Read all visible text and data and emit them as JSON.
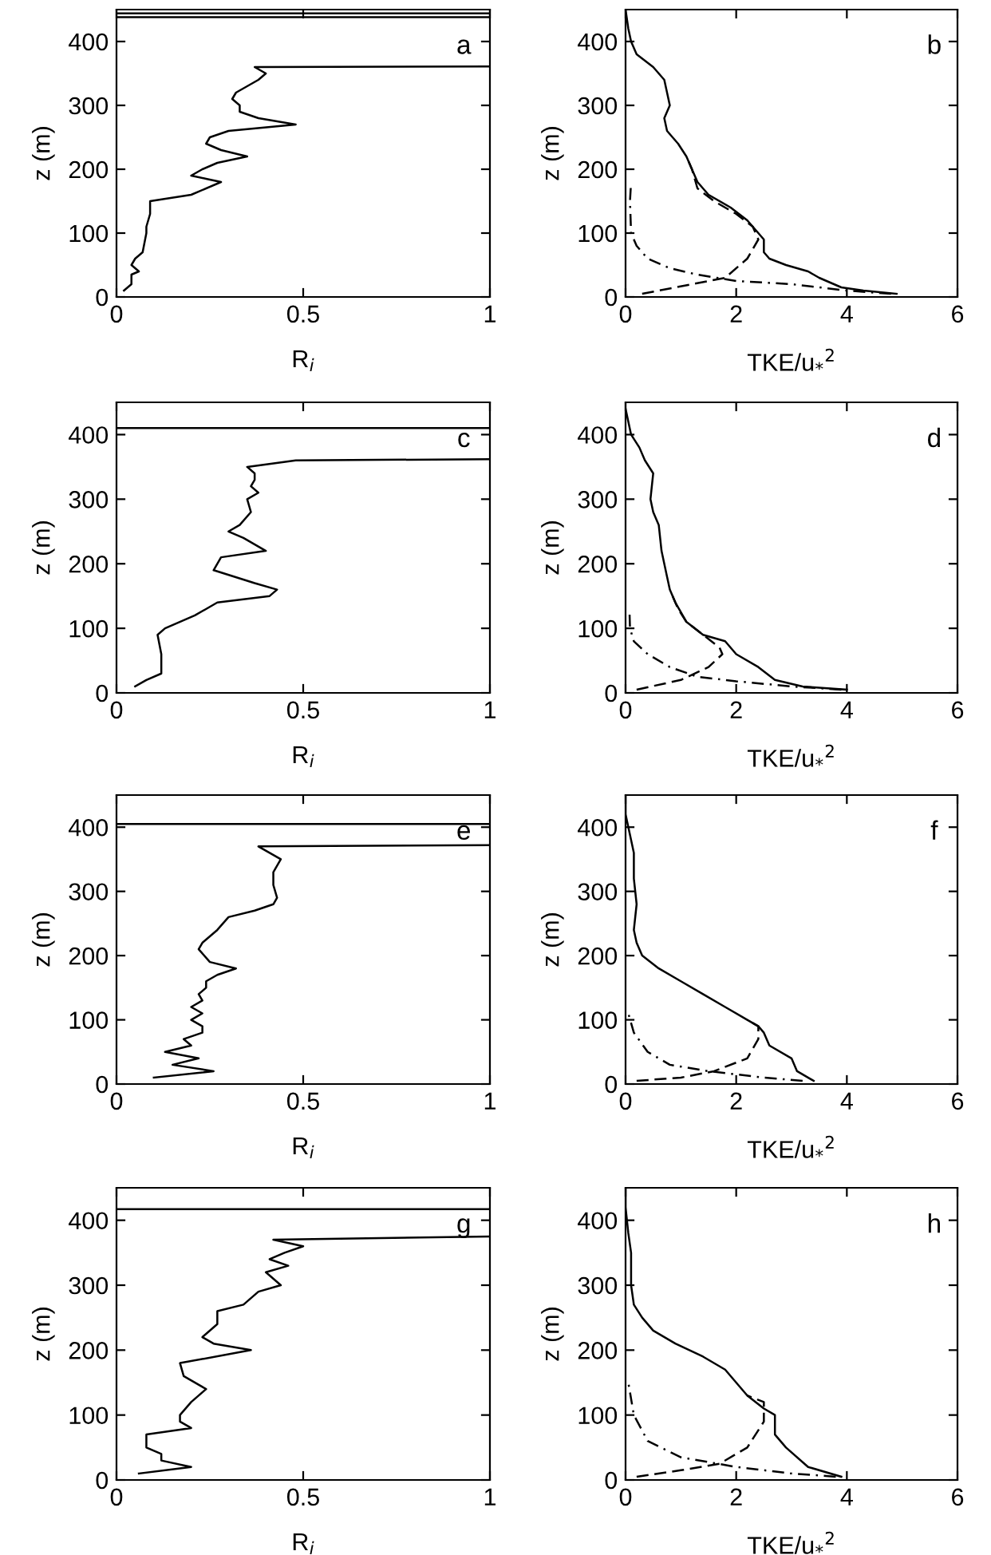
{
  "chart_data": [
    {
      "type": "line",
      "xlabel": "R$_{i}$",
      "ylabel": "z (m)",
      "annotations": [
        "a"
      ],
      "xlim": [
        0,
        1
      ],
      "xticks": [
        0,
        0.5,
        1
      ],
      "ylim": [
        0,
        450
      ],
      "yticks": [
        0,
        100,
        200,
        300,
        400
      ],
      "grid": false,
      "legend": false,
      "ref_lines": [
        {
          "axis": "y",
          "value": 438,
          "color": "#000000"
        },
        {
          "axis": "y",
          "value": 444,
          "color": "#000000"
        }
      ],
      "series": [
        {
          "color": "#000000",
          "line_style": "solid",
          "x": [
            0.02,
            0.04,
            0.04,
            0.06,
            0.04,
            0.05,
            0.07,
            0.08,
            0.08,
            0.09,
            0.09,
            0.2,
            0.28,
            0.24,
            0.2,
            0.23,
            0.27,
            0.35,
            0.28,
            0.24,
            0.25,
            0.3,
            0.48,
            0.38,
            0.33,
            0.33,
            0.31,
            0.32,
            0.35,
            0.38,
            0.4,
            0.37,
            1
          ],
          "values": [
            10,
            20,
            35,
            40,
            50,
            60,
            70,
            100,
            110,
            130,
            150,
            160,
            180,
            185,
            190,
            200,
            210,
            220,
            230,
            240,
            250,
            260,
            270,
            280,
            290,
            300,
            310,
            320,
            330,
            340,
            350,
            360,
            361
          ]
        }
      ]
    },
    {
      "type": "line",
      "xlabel": "TKE/u$_{*}$$^{2}$",
      "ylabel": "z (m)",
      "annotations": [
        "b"
      ],
      "xlim": [
        0,
        6
      ],
      "xticks": [
        0,
        2,
        4,
        6
      ],
      "ylim": [
        0,
        450
      ],
      "yticks": [
        0,
        100,
        200,
        300,
        400
      ],
      "grid": false,
      "legend": false,
      "series": [
        {
          "color": "#000000",
          "line_style": "solid",
          "x": [
            4.9,
            4.3,
            3.9,
            3.5,
            3.3,
            2.9,
            2.6,
            2.5,
            2.5,
            2.4,
            2.2,
            1.9,
            1.5,
            1.3,
            1.2,
            1.1,
            0.95,
            0.75,
            0.7,
            0.8,
            0.75,
            0.7,
            0.5,
            0.2,
            0.1,
            0.05,
            0
          ],
          "values": [
            5,
            10,
            15,
            30,
            40,
            50,
            60,
            70,
            90,
            100,
            120,
            140,
            160,
            180,
            200,
            220,
            240,
            260,
            280,
            300,
            320,
            340,
            360,
            380,
            400,
            420,
            450
          ]
        },
        {
          "color": "#000000",
          "line_style": "dashed",
          "x": [
            0.3,
            1.2,
            1.8,
            2.2,
            2.4,
            2.3,
            2.0,
            1.6,
            1.3,
            1.2,
            1.1
          ],
          "values": [
            5,
            20,
            30,
            60,
            90,
            110,
            130,
            150,
            170,
            200,
            220
          ]
        },
        {
          "color": "#000000",
          "line_style": "dashdot",
          "x": [
            4.8,
            4,
            3,
            2,
            1.3,
            0.8,
            0.4,
            0.2,
            0.1,
            0.08,
            0.1
          ],
          "values": [
            5,
            10,
            20,
            25,
            35,
            45,
            60,
            80,
            100,
            150,
            180
          ]
        }
      ]
    },
    {
      "type": "line",
      "xlabel": "R$_{i}$",
      "ylabel": "z (m)",
      "annotations": [
        "c"
      ],
      "xlim": [
        0,
        1
      ],
      "xticks": [
        0,
        0.5,
        1
      ],
      "ylim": [
        0,
        450
      ],
      "yticks": [
        0,
        100,
        200,
        300,
        400
      ],
      "grid": false,
      "legend": false,
      "ref_lines": [
        {
          "axis": "y",
          "value": 410,
          "color": "#000000"
        }
      ],
      "series": [
        {
          "color": "#000000",
          "line_style": "solid",
          "x": [
            0.05,
            0.08,
            0.12,
            0.12,
            0.11,
            0.13,
            0.21,
            0.27,
            0.41,
            0.43,
            0.37,
            0.26,
            0.28,
            0.4,
            0.34,
            0.3,
            0.33,
            0.36,
            0.35,
            0.38,
            0.36,
            0.37,
            0.37,
            0.35,
            0.48,
            1
          ],
          "values": [
            10,
            20,
            30,
            60,
            90,
            100,
            120,
            140,
            150,
            160,
            170,
            190,
            210,
            220,
            240,
            250,
            260,
            280,
            300,
            310,
            320,
            330,
            340,
            350,
            360,
            362
          ]
        }
      ]
    },
    {
      "type": "line",
      "xlabel": "TKE/u$_{*}$$^{2}$",
      "ylabel": "z (m)",
      "annotations": [
        "d"
      ],
      "xlim": [
        0,
        6
      ],
      "xticks": [
        0,
        2,
        4,
        6
      ],
      "ylim": [
        0,
        450
      ],
      "yticks": [
        0,
        100,
        200,
        300,
        400
      ],
      "grid": false,
      "legend": false,
      "series": [
        {
          "color": "#000000",
          "line_style": "solid",
          "x": [
            4,
            3.2,
            2.7,
            2.4,
            2,
            1.8,
            1.4,
            1.1,
            0.9,
            0.8,
            0.75,
            0.65,
            0.6,
            0.5,
            0.45,
            0.5,
            0.35,
            0.25,
            0.1,
            0
          ],
          "values": [
            5,
            10,
            20,
            40,
            60,
            80,
            90,
            110,
            140,
            160,
            180,
            220,
            260,
            280,
            300,
            340,
            360,
            380,
            400,
            440
          ]
        },
        {
          "color": "#000000",
          "line_style": "dashed",
          "x": [
            0.2,
            1,
            1.5,
            1.75,
            1.7,
            1.4,
            1.1,
            0.95,
            0.85
          ],
          "values": [
            5,
            20,
            40,
            60,
            70,
            90,
            110,
            130,
            150
          ]
        },
        {
          "color": "#000000",
          "line_style": "dashdot",
          "x": [
            3.9,
            3,
            2,
            1.3,
            0.8,
            0.4,
            0.15,
            0.08,
            0.07
          ],
          "values": [
            5,
            10,
            18,
            25,
            40,
            60,
            80,
            100,
            130
          ]
        }
      ]
    },
    {
      "type": "line",
      "xlabel": "R$_{i}$",
      "ylabel": "z (m)",
      "annotations": [
        "e"
      ],
      "xlim": [
        0,
        1
      ],
      "xticks": [
        0,
        0.5,
        1
      ],
      "ylim": [
        0,
        450
      ],
      "yticks": [
        0,
        100,
        200,
        300,
        400
      ],
      "grid": false,
      "legend": false,
      "ref_lines": [
        {
          "axis": "y",
          "value": 405,
          "color": "#000000"
        }
      ],
      "series": [
        {
          "color": "#000000",
          "line_style": "solid",
          "x": [
            0.1,
            0.26,
            0.15,
            0.22,
            0.13,
            0.2,
            0.18,
            0.23,
            0.23,
            0.2,
            0.23,
            0.2,
            0.23,
            0.22,
            0.24,
            0.24,
            0.27,
            0.32,
            0.25,
            0.22,
            0.23,
            0.27,
            0.3,
            0.37,
            0.42,
            0.43,
            0.42,
            0.42,
            0.44,
            0.38,
            1
          ],
          "values": [
            10,
            20,
            30,
            40,
            50,
            60,
            70,
            80,
            90,
            100,
            110,
            120,
            130,
            140,
            150,
            160,
            170,
            180,
            190,
            210,
            220,
            240,
            260,
            270,
            280,
            290,
            310,
            330,
            350,
            370,
            372
          ]
        }
      ]
    },
    {
      "type": "line",
      "xlabel": "TKE/u$_{*}$$^{2}$",
      "ylabel": "z (m)",
      "annotations": [
        "f"
      ],
      "xlim": [
        0,
        6
      ],
      "xticks": [
        0,
        2,
        4,
        6
      ],
      "ylim": [
        0,
        450
      ],
      "yticks": [
        0,
        100,
        200,
        300,
        400
      ],
      "grid": false,
      "legend": false,
      "series": [
        {
          "color": "#000000",
          "line_style": "solid",
          "x": [
            3.4,
            3.1,
            3.0,
            2.6,
            2.5,
            2.4,
            2.2,
            1.8,
            1.4,
            1.0,
            0.6,
            0.3,
            0.2,
            0.15,
            0.2,
            0.15,
            0.15,
            0.1,
            0,
            0
          ],
          "values": [
            5,
            20,
            40,
            60,
            80,
            90,
            100,
            120,
            140,
            160,
            180,
            200,
            220,
            240,
            280,
            320,
            360,
            380,
            420,
            450
          ]
        },
        {
          "color": "#000000",
          "line_style": "dashed",
          "x": [
            0.2,
            1.0,
            1.6,
            2.2,
            2.4,
            2.4,
            2.2
          ],
          "values": [
            5,
            10,
            20,
            40,
            70,
            90,
            100
          ]
        },
        {
          "color": "#000000",
          "line_style": "dashdot",
          "x": [
            3.2,
            2.5,
            1.5,
            0.8,
            0.4,
            0.15,
            0.05
          ],
          "values": [
            5,
            10,
            20,
            30,
            50,
            80,
            110
          ]
        }
      ]
    },
    {
      "type": "line",
      "xlabel": "R$_{i}$",
      "ylabel": "z (m)",
      "annotations": [
        "g"
      ],
      "xlim": [
        0,
        1
      ],
      "xticks": [
        0,
        0.5,
        1
      ],
      "ylim": [
        0,
        450
      ],
      "yticks": [
        0,
        100,
        200,
        300,
        400
      ],
      "grid": false,
      "legend": false,
      "ref_lines": [
        {
          "axis": "y",
          "value": 417,
          "color": "#000000"
        }
      ],
      "series": [
        {
          "color": "#000000",
          "line_style": "solid",
          "x": [
            0.06,
            0.2,
            0.12,
            0.12,
            0.08,
            0.08,
            0.2,
            0.17,
            0.17,
            0.2,
            0.24,
            0.18,
            0.17,
            0.36,
            0.26,
            0.23,
            0.27,
            0.27,
            0.34,
            0.38,
            0.44,
            0.4,
            0.46,
            0.41,
            0.45,
            0.5,
            0.42,
            1
          ],
          "values": [
            10,
            20,
            30,
            40,
            50,
            70,
            80,
            90,
            100,
            120,
            140,
            160,
            180,
            200,
            210,
            220,
            240,
            260,
            270,
            290,
            300,
            320,
            330,
            340,
            350,
            360,
            370,
            375
          ]
        }
      ]
    },
    {
      "type": "line",
      "xlabel": "TKE/u$_{*}$$^{2}$",
      "ylabel": "z (m)",
      "annotations": [
        "h"
      ],
      "xlim": [
        0,
        6
      ],
      "xticks": [
        0,
        2,
        4,
        6
      ],
      "ylim": [
        0,
        450
      ],
      "yticks": [
        0,
        100,
        200,
        300,
        400
      ],
      "grid": false,
      "legend": false,
      "series": [
        {
          "color": "#000000",
          "line_style": "solid",
          "x": [
            3.9,
            3.3,
            2.9,
            2.7,
            2.7,
            2.5,
            2.2,
            1.8,
            1.4,
            0.9,
            0.5,
            0.3,
            0.15,
            0.1,
            0.1,
            0.05,
            0,
            0
          ],
          "values": [
            5,
            20,
            50,
            70,
            100,
            110,
            130,
            170,
            190,
            210,
            230,
            250,
            270,
            300,
            350,
            380,
            420,
            450
          ]
        },
        {
          "color": "#000000",
          "line_style": "dashed",
          "x": [
            0.2,
            1.0,
            1.7,
            2.2,
            2.5,
            2.5,
            2.2
          ],
          "values": [
            5,
            15,
            25,
            50,
            90,
            120,
            130
          ]
        },
        {
          "color": "#000000",
          "line_style": "dashdot",
          "x": [
            3.8,
            3,
            2,
            1,
            0.4,
            0.15,
            0.05
          ],
          "values": [
            5,
            10,
            20,
            35,
            60,
            100,
            150
          ]
        }
      ]
    }
  ]
}
